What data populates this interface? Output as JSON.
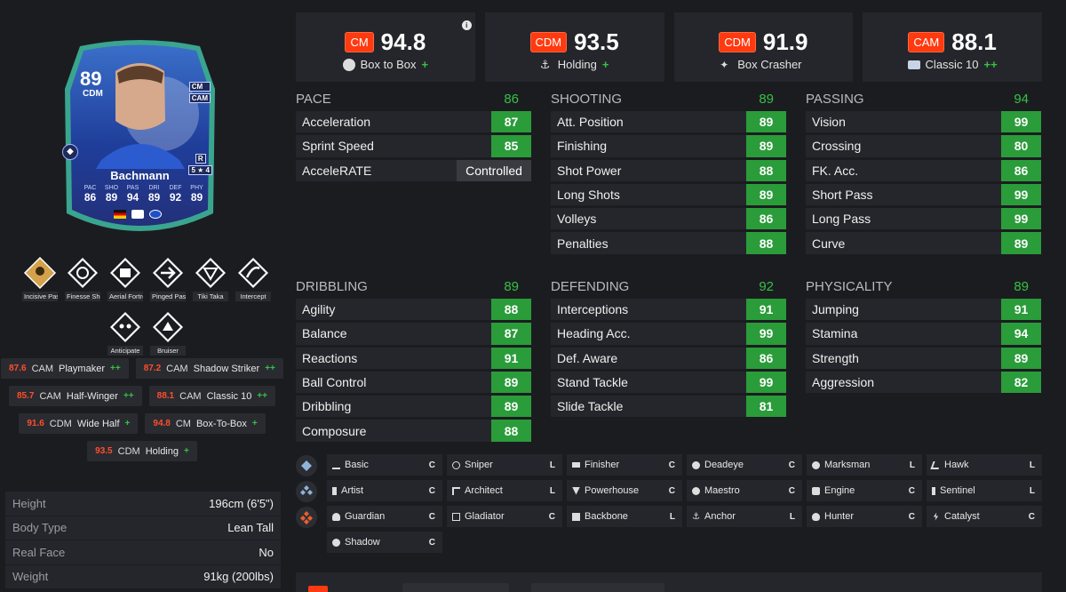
{
  "card": {
    "rating": "89",
    "position": "CDM",
    "alt_positions": [
      "CM",
      "CAM"
    ],
    "foot": "R",
    "skills_weak": "5 ★ 4",
    "name": "Bachmann",
    "stats": [
      {
        "label": "PAC",
        "value": "86"
      },
      {
        "label": "SHO",
        "value": "89"
      },
      {
        "label": "PAS",
        "value": "94"
      },
      {
        "label": "DRI",
        "value": "89"
      },
      {
        "label": "DEF",
        "value": "92"
      },
      {
        "label": "PHY",
        "value": "89"
      }
    ]
  },
  "traits": [
    {
      "label": "Incisive Pass",
      "icon": "incisive-pass-icon"
    },
    {
      "label": "Finesse Shot",
      "icon": "finesse-shot-icon"
    },
    {
      "label": "Aerial Fortress",
      "icon": "aerial-fortress-icon"
    },
    {
      "label": "Pinged Pass",
      "icon": "pinged-pass-icon"
    },
    {
      "label": "Tiki Taka",
      "icon": "tiki-taka-icon"
    },
    {
      "label": "Intercept",
      "icon": "intercept-icon"
    },
    {
      "label": "Anticipate",
      "icon": "anticipate-icon"
    },
    {
      "label": "Bruiser",
      "icon": "bruiser-icon"
    }
  ],
  "roles": [
    {
      "value": "87.6",
      "pos": "CAM",
      "name": "Playmaker",
      "plus": "++"
    },
    {
      "value": "87.2",
      "pos": "CAM",
      "name": "Shadow Striker",
      "plus": "++"
    },
    {
      "value": "85.7",
      "pos": "CAM",
      "name": "Half-Winger",
      "plus": "++"
    },
    {
      "value": "88.1",
      "pos": "CAM",
      "name": "Classic 10",
      "plus": "++"
    },
    {
      "value": "91.6",
      "pos": "CDM",
      "name": "Wide Half",
      "plus": "+"
    },
    {
      "value": "94.8",
      "pos": "CM",
      "name": "Box-To-Box",
      "plus": "+"
    },
    {
      "value": "93.5",
      "pos": "CDM",
      "name": "Holding",
      "plus": "+"
    }
  ],
  "info": [
    {
      "key": "Height",
      "value": "196cm (6'5\")"
    },
    {
      "key": "Body Type",
      "value": "Lean Tall"
    },
    {
      "key": "Real Face",
      "value": "No"
    },
    {
      "key": "Weight",
      "value": "91kg (200lbs)"
    }
  ],
  "summary": [
    {
      "pos": "CM",
      "value": "94.8",
      "role": "Box to Box",
      "plus": "+",
      "icon": "box-to-box-icon"
    },
    {
      "pos": "CDM",
      "value": "93.5",
      "role": "Holding",
      "plus": "+",
      "icon": "anchor-icon"
    },
    {
      "pos": "CDM",
      "value": "91.9",
      "role": "Box Crasher",
      "plus": "",
      "icon": "box-crasher-icon"
    },
    {
      "pos": "CAM",
      "value": "88.1",
      "role": "Classic 10",
      "plus": "++",
      "icon": "classic-10-icon"
    }
  ],
  "groups": [
    {
      "title": "PACE",
      "value": "86",
      "attrs": [
        {
          "name": "Acceleration",
          "value": "87"
        },
        {
          "name": "Sprint Speed",
          "value": "85"
        },
        {
          "name": "AcceleRATE",
          "value": "Controlled",
          "text": true
        }
      ]
    },
    {
      "title": "SHOOTING",
      "value": "89",
      "attrs": [
        {
          "name": "Att. Position",
          "value": "89"
        },
        {
          "name": "Finishing",
          "value": "89"
        },
        {
          "name": "Shot Power",
          "value": "88"
        },
        {
          "name": "Long Shots",
          "value": "89"
        },
        {
          "name": "Volleys",
          "value": "86"
        },
        {
          "name": "Penalties",
          "value": "88"
        }
      ]
    },
    {
      "title": "PASSING",
      "value": "94",
      "attrs": [
        {
          "name": "Vision",
          "value": "99"
        },
        {
          "name": "Crossing",
          "value": "80"
        },
        {
          "name": "FK. Acc.",
          "value": "86"
        },
        {
          "name": "Short Pass",
          "value": "99"
        },
        {
          "name": "Long Pass",
          "value": "99"
        },
        {
          "name": "Curve",
          "value": "89"
        }
      ]
    },
    {
      "title": "DRIBBLING",
      "value": "89",
      "attrs": [
        {
          "name": "Agility",
          "value": "88"
        },
        {
          "name": "Balance",
          "value": "87"
        },
        {
          "name": "Reactions",
          "value": "91"
        },
        {
          "name": "Ball Control",
          "value": "89"
        },
        {
          "name": "Dribbling",
          "value": "89"
        },
        {
          "name": "Composure",
          "value": "88"
        }
      ]
    },
    {
      "title": "DEFENDING",
      "value": "92",
      "attrs": [
        {
          "name": "Interceptions",
          "value": "91"
        },
        {
          "name": "Heading Acc.",
          "value": "99"
        },
        {
          "name": "Def. Aware",
          "value": "86"
        },
        {
          "name": "Stand Tackle",
          "value": "99"
        },
        {
          "name": "Slide Tackle",
          "value": "81"
        }
      ]
    },
    {
      "title": "PHYSICALITY",
      "value": "89",
      "attrs": [
        {
          "name": "Jumping",
          "value": "91"
        },
        {
          "name": "Stamina",
          "value": "94"
        },
        {
          "name": "Strength",
          "value": "89"
        },
        {
          "name": "Aggression",
          "value": "82"
        }
      ]
    }
  ],
  "chem_styles": [
    {
      "name": "Basic",
      "grade": "C",
      "icon": "basic-icon"
    },
    {
      "name": "Sniper",
      "grade": "L",
      "icon": "sniper-icon"
    },
    {
      "name": "Finisher",
      "grade": "C",
      "icon": "finisher-icon"
    },
    {
      "name": "Deadeye",
      "grade": "C",
      "icon": "deadeye-icon"
    },
    {
      "name": "Marksman",
      "grade": "L",
      "icon": "marksman-icon"
    },
    {
      "name": "Hawk",
      "grade": "L",
      "icon": "hawk-icon"
    },
    {
      "name": "Artist",
      "grade": "C",
      "icon": "artist-icon"
    },
    {
      "name": "Architect",
      "grade": "L",
      "icon": "architect-icon"
    },
    {
      "name": "Powerhouse",
      "grade": "C",
      "icon": "powerhouse-icon"
    },
    {
      "name": "Maestro",
      "grade": "C",
      "icon": "maestro-icon"
    },
    {
      "name": "Engine",
      "grade": "C",
      "icon": "engine-icon"
    },
    {
      "name": "Sentinel",
      "grade": "L",
      "icon": "sentinel-icon"
    },
    {
      "name": "Guardian",
      "grade": "C",
      "icon": "guardian-icon"
    },
    {
      "name": "Gladiator",
      "grade": "C",
      "icon": "gladiator-icon"
    },
    {
      "name": "Backbone",
      "grade": "L",
      "icon": "backbone-icon"
    },
    {
      "name": "Anchor",
      "grade": "L",
      "icon": "anchor-icon"
    },
    {
      "name": "Hunter",
      "grade": "C",
      "icon": "hunter-icon"
    },
    {
      "name": "Catalyst",
      "grade": "C",
      "icon": "catalyst-icon"
    },
    {
      "name": "Shadow",
      "grade": "C",
      "icon": "shadow-icon"
    }
  ],
  "colors": {
    "accent": "#ff3a10",
    "good": "#2a9c3a",
    "plus": "#35c145",
    "panel": "#25262b",
    "background": "#1b1c20"
  }
}
